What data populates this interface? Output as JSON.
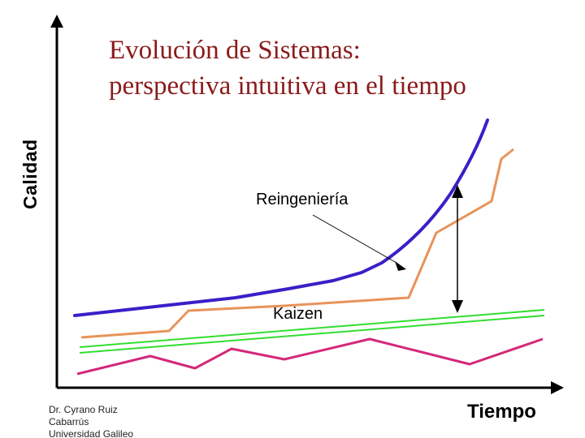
{
  "title": {
    "line1": "Evolución de Sistemas:",
    "line2": "perspectiva intuitiva en el tiempo"
  },
  "axes": {
    "y_label": "Calidad",
    "x_label": "Tiempo"
  },
  "annotations": {
    "reingenieria": "Reingeniería",
    "kaizen": "Kaizen"
  },
  "author": {
    "line1": "Dr. Cyrano Ruiz",
    "line2": "Cabarrús",
    "line3": "Universidad Galileo"
  },
  "colors": {
    "title": "#8b1a1a",
    "reengineering_curve": "#3a1fc8",
    "step_line": "#e8935a",
    "kaizen_lines": "#33dd33",
    "bottom_zigzag": "#d4287a",
    "axes": "#000000"
  }
}
